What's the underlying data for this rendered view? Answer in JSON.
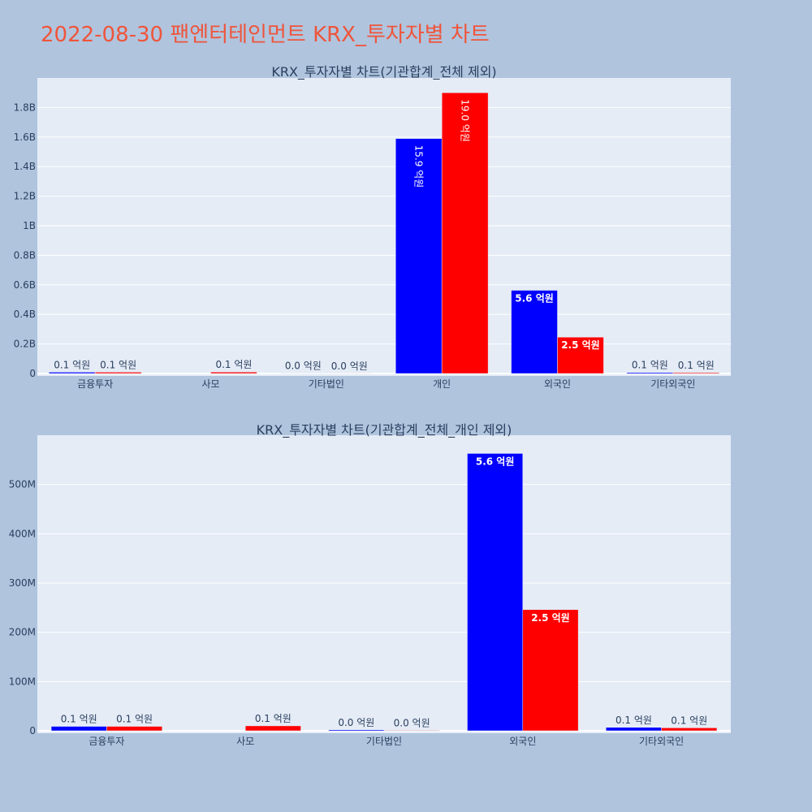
{
  "page": {
    "title": "2022-08-30 팬엔터테인먼트 KRX_투자자별 차트"
  },
  "chart_data": [
    {
      "type": "bar",
      "title": "KRX_투자자별 차트(기관합계_전체 제외)",
      "categories": [
        "금융투자",
        "사모",
        "기타법인",
        "개인",
        "외국인",
        "기타외국인"
      ],
      "series": [
        {
          "color": "#0000ff",
          "values": [
            9000000,
            0,
            2000000,
            1590000000,
            563000000,
            7000000
          ],
          "labels": [
            "0.1 억원",
            "",
            "0.0 억원",
            "15.9 억원",
            "5.6 억원",
            "0.1 억원"
          ]
        },
        {
          "color": "#ff0000",
          "values": [
            9000000,
            10000000,
            1000000,
            1900000000,
            246000000,
            6000000
          ],
          "labels": [
            "0.1 억원",
            "0.1 억원",
            "0.0 억원",
            "19.0 억원",
            "2.5 억원",
            "0.1 억원"
          ]
        }
      ],
      "ylim": [
        0,
        2000000000
      ],
      "yticks": [
        0,
        200000000,
        400000000,
        600000000,
        800000000,
        1000000000,
        1200000000,
        1400000000,
        1600000000,
        1800000000
      ],
      "ytick_labels": [
        "0",
        "0.2B",
        "0.4B",
        "0.6B",
        "0.8B",
        "1B",
        "1.2B",
        "1.4B",
        "1.6B",
        "1.8B"
      ],
      "grid": true
    },
    {
      "type": "bar",
      "title": "KRX_투자자별 차트(기관합계_전체_개인 제외)",
      "categories": [
        "금융투자",
        "사모",
        "기타법인",
        "외국인",
        "기타외국인"
      ],
      "series": [
        {
          "color": "#0000ff",
          "values": [
            9000000,
            0,
            2000000,
            563000000,
            7000000
          ],
          "labels": [
            "0.1 억원",
            "",
            "0.0 억원",
            "5.6 억원",
            "0.1 억원"
          ]
        },
        {
          "color": "#ff0000",
          "values": [
            9000000,
            10000000,
            1000000,
            246000000,
            6000000
          ],
          "labels": [
            "0.1 억원",
            "0.1 억원",
            "0.0 억원",
            "2.5 억원",
            "0.1 억원"
          ]
        }
      ],
      "ylim": [
        0,
        600000000
      ],
      "yticks": [
        0,
        100000000,
        200000000,
        300000000,
        400000000,
        500000000
      ],
      "ytick_labels": [
        "0",
        "100M",
        "200M",
        "300M",
        "400M",
        "500M"
      ],
      "grid": true
    }
  ]
}
